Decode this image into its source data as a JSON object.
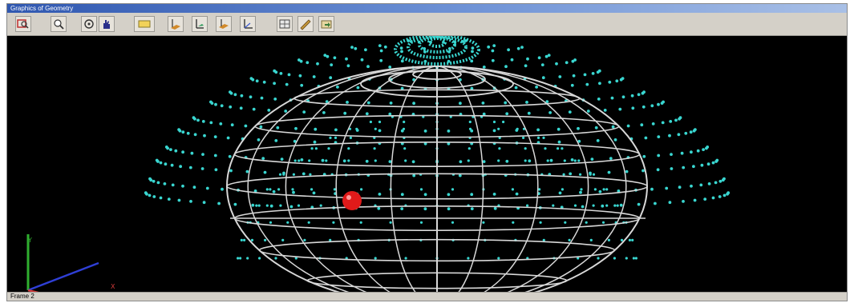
{
  "window": {
    "title": "Graphics of Geometry"
  },
  "toolbar": {
    "groups": [
      {
        "buttons": [
          {
            "icon": "zoom-window-icon"
          },
          {
            "icon": "zoom-fit-icon"
          },
          {
            "icon": "rotate-icon"
          },
          {
            "icon": "pan-hand-icon"
          },
          {
            "icon": "shade-toggle-icon"
          }
        ]
      },
      {
        "buttons": [
          {
            "icon": "view-front-icon"
          },
          {
            "icon": "view-side-icon"
          },
          {
            "icon": "view-top-icon"
          },
          {
            "icon": "view-iso-icon"
          }
        ]
      },
      {
        "buttons": [
          {
            "icon": "mesh-display-icon"
          },
          {
            "icon": "edit-pencil-icon"
          },
          {
            "icon": "export-icon"
          }
        ]
      }
    ]
  },
  "axes": {
    "y_label": "Y",
    "x_label": "X",
    "y_color": "#2fae2f",
    "x_color": "#d23a3a",
    "z_color": "#2f3fd6"
  },
  "colors": {
    "point_cloud": "#39d6d0",
    "wireframe": "#d8d8d8",
    "marker": "#e01a1a",
    "background": "#000000"
  },
  "status": {
    "text": "Frame 2"
  }
}
